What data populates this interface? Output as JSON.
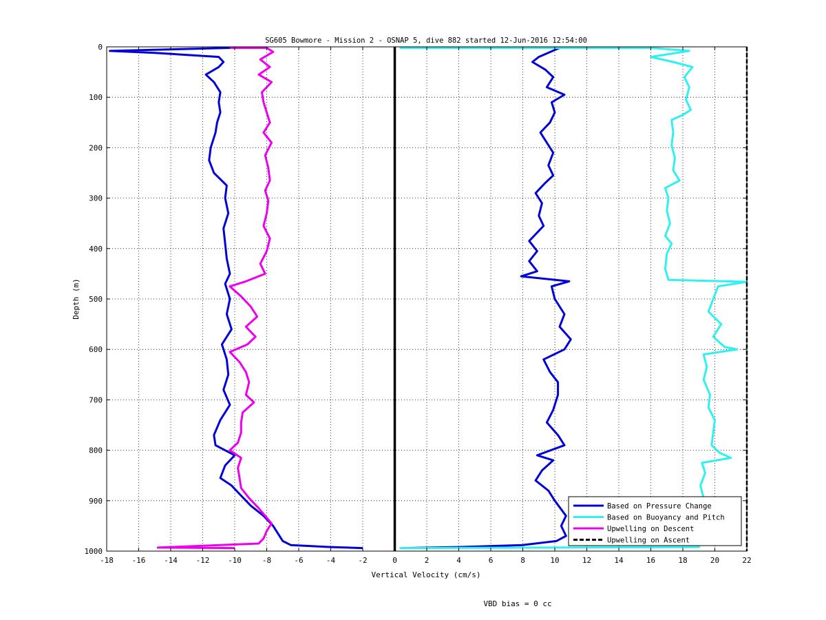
{
  "chart_data": {
    "type": "line",
    "title": "SG605 Bowmore - Mission 2 - OSNAP 5, dive 882 started 12-Jun-2016 12:54:00",
    "xlabel": "Vertical Velocity (cm/s)",
    "ylabel": "Depth (m)",
    "xlim": [
      -18,
      22
    ],
    "ylim": [
      0,
      1000
    ],
    "y_reversed": true,
    "grid": true,
    "x_ticks": [
      -18,
      -16,
      -14,
      -12,
      -10,
      -8,
      -6,
      -4,
      -2,
      0,
      2,
      4,
      6,
      8,
      10,
      12,
      14,
      16,
      18,
      20,
      22
    ],
    "y_ticks": [
      0,
      100,
      200,
      300,
      400,
      500,
      600,
      700,
      800,
      900,
      1000
    ],
    "zero_line": 0,
    "legend_position": "bottom-right",
    "footer_text": "VBD bias = 0 cc",
    "series": [
      {
        "name": "Based on Pressure Change",
        "color": "#0000d8",
        "style": "solid",
        "points": [
          [
            -10.3,
            2
          ],
          [
            -17.8,
            8
          ],
          [
            -15.0,
            12
          ],
          [
            -11.0,
            20
          ],
          [
            -10.7,
            30
          ],
          [
            -11.0,
            40
          ],
          [
            -11.8,
            55
          ],
          [
            -11.3,
            70
          ],
          [
            -10.9,
            90
          ],
          [
            -11.0,
            110
          ],
          [
            -10.9,
            130
          ],
          [
            -11.1,
            150
          ],
          [
            -11.2,
            170
          ],
          [
            -11.5,
            200
          ],
          [
            -11.6,
            225
          ],
          [
            -11.3,
            250
          ],
          [
            -10.5,
            275
          ],
          [
            -10.6,
            300
          ],
          [
            -10.4,
            330
          ],
          [
            -10.7,
            360
          ],
          [
            -10.6,
            390
          ],
          [
            -10.5,
            420
          ],
          [
            -10.3,
            450
          ],
          [
            -10.6,
            470
          ],
          [
            -10.3,
            500
          ],
          [
            -10.5,
            530
          ],
          [
            -10.2,
            560
          ],
          [
            -10.8,
            590
          ],
          [
            -10.5,
            620
          ],
          [
            -10.4,
            650
          ],
          [
            -10.7,
            680
          ],
          [
            -10.3,
            710
          ],
          [
            -10.9,
            740
          ],
          [
            -11.3,
            770
          ],
          [
            -11.2,
            790
          ],
          [
            -10.0,
            810
          ],
          [
            -10.6,
            830
          ],
          [
            -10.9,
            855
          ],
          [
            -10.2,
            870
          ],
          [
            -9.6,
            890
          ],
          [
            -9.0,
            910
          ],
          [
            -8.2,
            930
          ],
          [
            -7.6,
            950
          ],
          [
            -7.3,
            965
          ],
          [
            -7.0,
            980
          ],
          [
            -6.5,
            988
          ],
          [
            -4.0,
            992
          ],
          [
            -2.0,
            994
          ]
        ]
      },
      {
        "name": "Based on Pressure Change",
        "color": "#0000d8",
        "style": "solid",
        "points": [
          [
            10.3,
            2
          ],
          [
            9.0,
            20
          ],
          [
            8.6,
            30
          ],
          [
            9.4,
            45
          ],
          [
            9.9,
            60
          ],
          [
            9.5,
            80
          ],
          [
            10.6,
            95
          ],
          [
            9.8,
            110
          ],
          [
            10.0,
            130
          ],
          [
            9.7,
            150
          ],
          [
            9.1,
            170
          ],
          [
            9.5,
            190
          ],
          [
            9.9,
            210
          ],
          [
            9.6,
            235
          ],
          [
            9.9,
            255
          ],
          [
            9.4,
            270
          ],
          [
            8.8,
            290
          ],
          [
            9.2,
            310
          ],
          [
            9.0,
            335
          ],
          [
            9.3,
            355
          ],
          [
            8.4,
            385
          ],
          [
            8.9,
            405
          ],
          [
            8.4,
            425
          ],
          [
            8.9,
            445
          ],
          [
            7.9,
            455
          ],
          [
            10.9,
            465
          ],
          [
            9.8,
            475
          ],
          [
            10.0,
            500
          ],
          [
            10.6,
            530
          ],
          [
            10.3,
            555
          ],
          [
            11.0,
            580
          ],
          [
            10.6,
            600
          ],
          [
            9.3,
            620
          ],
          [
            9.7,
            645
          ],
          [
            10.2,
            665
          ],
          [
            10.2,
            690
          ],
          [
            9.9,
            720
          ],
          [
            9.5,
            745
          ],
          [
            10.2,
            770
          ],
          [
            10.6,
            790
          ],
          [
            8.9,
            810
          ],
          [
            9.9,
            820
          ],
          [
            9.2,
            840
          ],
          [
            8.8,
            860
          ],
          [
            9.6,
            880
          ],
          [
            10.0,
            900
          ],
          [
            10.7,
            930
          ],
          [
            10.4,
            950
          ],
          [
            10.7,
            970
          ],
          [
            10.1,
            980
          ],
          [
            8.0,
            988
          ],
          [
            4.0,
            992
          ],
          [
            0.5,
            994
          ]
        ]
      },
      {
        "name": "Based on Buoyancy and Pitch",
        "color": "#30f0f0",
        "style": "solid",
        "points": [
          [
            0.3,
            2
          ],
          [
            16.0,
            2
          ],
          [
            18.4,
            8
          ],
          [
            16.0,
            20
          ],
          [
            17.4,
            30
          ],
          [
            18.6,
            40
          ],
          [
            18.1,
            60
          ],
          [
            18.4,
            80
          ],
          [
            18.2,
            105
          ],
          [
            18.5,
            125
          ],
          [
            18.0,
            135
          ],
          [
            17.3,
            145
          ],
          [
            17.4,
            170
          ],
          [
            17.3,
            195
          ],
          [
            17.5,
            220
          ],
          [
            17.4,
            245
          ],
          [
            17.8,
            265
          ],
          [
            16.9,
            280
          ],
          [
            17.1,
            300
          ],
          [
            17.0,
            325
          ],
          [
            17.2,
            350
          ],
          [
            16.9,
            375
          ],
          [
            17.3,
            390
          ],
          [
            17.0,
            410
          ],
          [
            16.9,
            440
          ],
          [
            17.1,
            462
          ],
          [
            22.0,
            466
          ],
          [
            20.2,
            475
          ],
          [
            19.9,
            500
          ],
          [
            19.6,
            525
          ],
          [
            20.4,
            550
          ],
          [
            19.9,
            575
          ],
          [
            20.6,
            595
          ],
          [
            21.4,
            600
          ],
          [
            19.3,
            610
          ],
          [
            19.5,
            635
          ],
          [
            19.3,
            660
          ],
          [
            19.7,
            690
          ],
          [
            19.6,
            715
          ],
          [
            20.0,
            740
          ],
          [
            19.9,
            765
          ],
          [
            19.8,
            790
          ],
          [
            20.3,
            805
          ],
          [
            21.0,
            815
          ],
          [
            19.2,
            825
          ],
          [
            19.4,
            845
          ],
          [
            19.1,
            870
          ],
          [
            19.3,
            895
          ],
          [
            19.2,
            920
          ],
          [
            19.0,
            950
          ],
          [
            19.0,
            975
          ],
          [
            19.0,
            992
          ],
          [
            0.3,
            994
          ]
        ]
      },
      {
        "name": "Upwelling on Descent",
        "color": "#ee00ee",
        "style": "solid",
        "points": [
          [
            -10.3,
            2
          ],
          [
            -8.0,
            2
          ],
          [
            -7.6,
            10
          ],
          [
            -8.4,
            25
          ],
          [
            -7.8,
            40
          ],
          [
            -8.5,
            55
          ],
          [
            -7.7,
            70
          ],
          [
            -8.3,
            90
          ],
          [
            -8.2,
            110
          ],
          [
            -8.0,
            130
          ],
          [
            -7.8,
            150
          ],
          [
            -8.2,
            170
          ],
          [
            -7.7,
            190
          ],
          [
            -8.1,
            215
          ],
          [
            -7.9,
            240
          ],
          [
            -7.8,
            265
          ],
          [
            -8.1,
            285
          ],
          [
            -7.9,
            305
          ],
          [
            -8.0,
            330
          ],
          [
            -8.2,
            355
          ],
          [
            -7.8,
            380
          ],
          [
            -8.0,
            405
          ],
          [
            -8.4,
            430
          ],
          [
            -8.1,
            450
          ],
          [
            -9.3,
            465
          ],
          [
            -10.3,
            475
          ],
          [
            -9.6,
            495
          ],
          [
            -9.0,
            515
          ],
          [
            -8.6,
            535
          ],
          [
            -9.3,
            555
          ],
          [
            -8.7,
            575
          ],
          [
            -9.2,
            590
          ],
          [
            -10.3,
            605
          ],
          [
            -9.7,
            625
          ],
          [
            -9.3,
            645
          ],
          [
            -9.1,
            665
          ],
          [
            -9.3,
            690
          ],
          [
            -8.8,
            705
          ],
          [
            -9.5,
            725
          ],
          [
            -9.6,
            745
          ],
          [
            -9.6,
            765
          ],
          [
            -9.8,
            785
          ],
          [
            -10.3,
            800
          ],
          [
            -9.6,
            815
          ],
          [
            -9.8,
            835
          ],
          [
            -9.7,
            855
          ],
          [
            -9.6,
            875
          ],
          [
            -9.1,
            895
          ],
          [
            -8.5,
            915
          ],
          [
            -8.1,
            930
          ],
          [
            -7.7,
            945
          ],
          [
            -8.0,
            960
          ],
          [
            -8.2,
            975
          ],
          [
            -8.5,
            985
          ],
          [
            -14.8,
            993
          ],
          [
            -10.0,
            994
          ]
        ]
      },
      {
        "name": "Upwelling on Ascent",
        "color": "#000000",
        "style": "dashed",
        "points": [
          [
            22.0,
            0
          ],
          [
            22.0,
            1000
          ]
        ]
      }
    ],
    "legend": [
      {
        "label": "Based on Pressure Change",
        "color": "#0000d8",
        "style": "solid"
      },
      {
        "label": "Based on Buoyancy and Pitch",
        "color": "#30f0f0",
        "style": "solid"
      },
      {
        "label": "Upwelling on Descent",
        "color": "#ee00ee",
        "style": "solid"
      },
      {
        "label": "Upwelling on Ascent",
        "color": "#000000",
        "style": "dashed"
      }
    ]
  }
}
